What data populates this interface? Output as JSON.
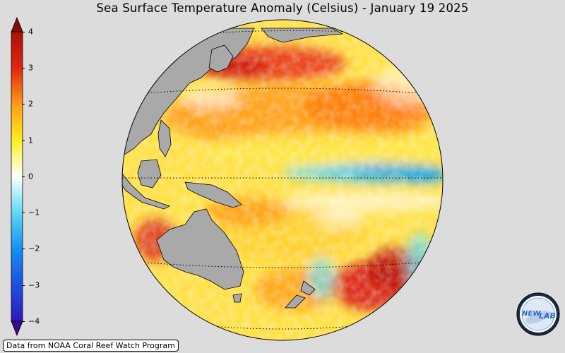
{
  "title": "Sea Surface Temperature Anomaly (Celsius) - January 19 2025",
  "colorbar": {
    "ticks": [
      "4",
      "3",
      "2",
      "1",
      "0",
      "−1",
      "−2",
      "−3",
      "−4"
    ],
    "tick_values": [
      4,
      3,
      2,
      1,
      0,
      -1,
      -2,
      -3,
      -4
    ],
    "min": -4,
    "max": 4,
    "extend": "both",
    "colors": {
      "min_tip": "#3b0a8c",
      "c_minus4": "#2e1bbd",
      "c_minus3": "#1f4fe0",
      "c_minus2": "#1490f0",
      "c_minus1": "#5fd8f5",
      "c_zero": "#ffffff",
      "c_plus1": "#ffee22",
      "c_plus2": "#ff9a14",
      "c_plus3": "#e02612",
      "c_plus4": "#a81008",
      "max_tip": "#8a0a0a"
    }
  },
  "map": {
    "projection": "orthographic",
    "land_color": "#a9a9a9",
    "background_color": "#dcdcdc",
    "gridlines": "dotted"
  },
  "credit": "Data from NOAA Coral Reef Watch Program",
  "logo": {
    "text_left": "NEW",
    "text_right": "LAB"
  }
}
